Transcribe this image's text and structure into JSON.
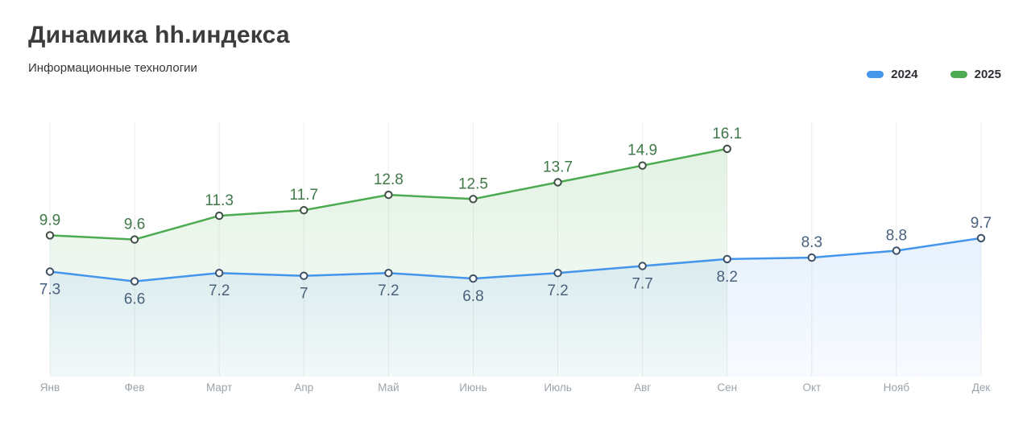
{
  "chart_data": {
    "type": "line",
    "title": "Динамика hh.индекса",
    "subtitle": "Информационные технологии",
    "categories": [
      "Янв",
      "Фев",
      "Март",
      "Апр",
      "Май",
      "Июнь",
      "Июль",
      "Авг",
      "Сен",
      "Окт",
      "Нояб",
      "Дек"
    ],
    "series": [
      {
        "name": "2024",
        "color": "#4495ec",
        "label_color": "#4a617e",
        "marker_stroke": "#3f5166",
        "values": [
          7.3,
          6.6,
          7.2,
          7,
          7.2,
          6.8,
          7.2,
          7.7,
          8.2,
          8.3,
          8.8,
          9.7
        ]
      },
      {
        "name": "2025",
        "color": "#4cab51",
        "label_color": "#41794a",
        "marker_stroke": "#3f4f44",
        "values": [
          9.9,
          9.6,
          11.3,
          11.7,
          12.8,
          12.5,
          13.7,
          14.9,
          16.1
        ]
      }
    ],
    "ylim": [
      0,
      18
    ],
    "grid": "vertical-only",
    "gridline_color": "#ededed",
    "x_tick_color": "#9aa3ab",
    "legend_position": "top-right",
    "point_marker": "open-circle",
    "area_fill": true
  }
}
